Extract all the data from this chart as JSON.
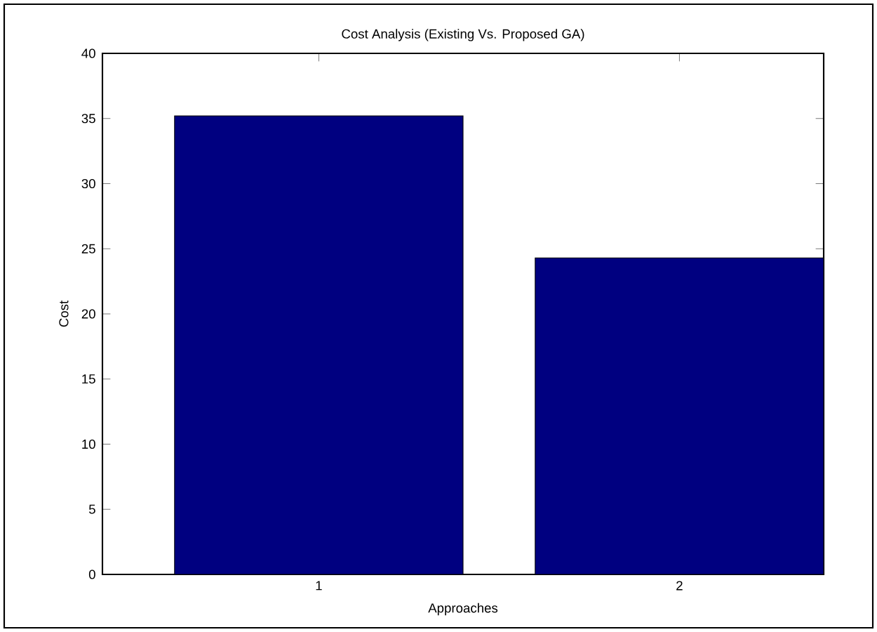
{
  "chart_data": {
    "type": "bar",
    "title": "Cost Analysis (Existing Vs. Proposed GA)",
    "xlabel": "Approaches",
    "ylabel": "Cost",
    "x": [
      1,
      2
    ],
    "values": [
      35.2,
      24.3
    ],
    "color": "#000080",
    "xlim": [
      0.4,
      2.4
    ],
    "xticks": [
      1,
      2
    ],
    "ylim": [
      0,
      40
    ],
    "yticks": [
      0,
      5,
      10,
      15,
      20,
      25,
      30,
      35,
      40
    ],
    "grid": false
  }
}
